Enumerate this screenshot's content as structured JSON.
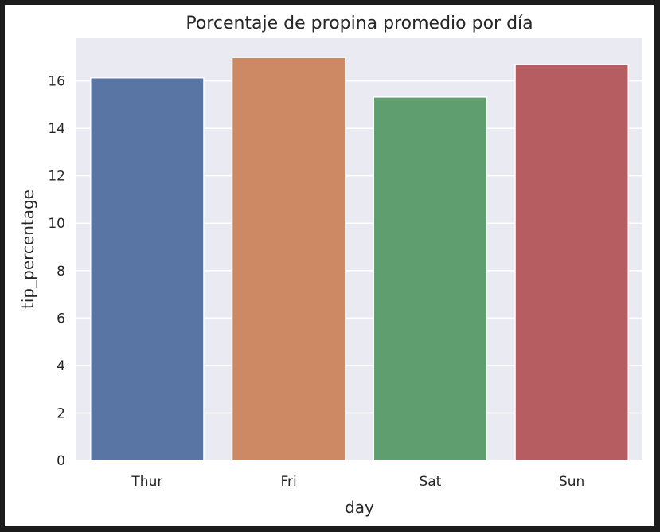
{
  "chart_data": {
    "type": "bar",
    "title": "Porcentaje de propina promedio por día",
    "xlabel": "day",
    "ylabel": "tip_percentage",
    "categories": [
      "Thur",
      "Fri",
      "Sat",
      "Sun"
    ],
    "values": [
      16.13,
      16.99,
      15.32,
      16.69
    ],
    "ylim": [
      0,
      17.8
    ],
    "yticks": [
      0,
      2,
      4,
      6,
      8,
      10,
      12,
      14,
      16
    ],
    "colors": [
      "#5875a4",
      "#cc8963",
      "#5f9e6e",
      "#b55d60"
    ],
    "grid": true,
    "background": "#eaeaf2"
  }
}
